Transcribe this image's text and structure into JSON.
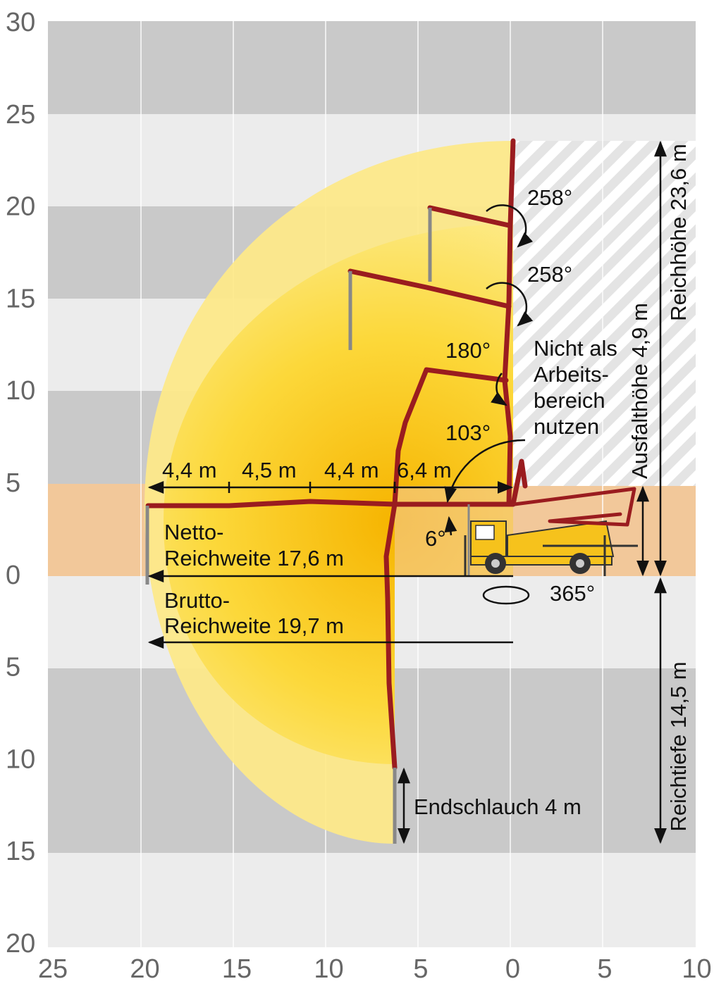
{
  "axes": {
    "y_labels": [
      "30",
      "25",
      "20",
      "15",
      "10",
      "5",
      "0",
      "5",
      "10",
      "15",
      "20"
    ],
    "x_labels": [
      "25",
      "20",
      "15",
      "10",
      "5",
      "0",
      "5",
      "10"
    ]
  },
  "angles": [
    "258°",
    "258°",
    "180°",
    "103°",
    "6°",
    "365°"
  ],
  "warning": [
    "Nicht als",
    "Arbeits-",
    "bereich",
    "nutzen"
  ],
  "dimensions": {
    "reach_height": "Reichhöhe 23,6 m",
    "unfold_height": "Ausfalthöhe 4,9 m",
    "reach_depth": "Reichtiefe 14,5 m",
    "end_hose": "Endschlauch 4 m"
  },
  "segments": [
    "4,4 m",
    "4,5 m",
    "4,4 m",
    "6,4 m"
  ],
  "net_reach": [
    "Netto-",
    "Reichweite 17,6 m"
  ],
  "gross_reach": [
    "Brutto-",
    "Reichweite 19,7 m"
  ]
}
